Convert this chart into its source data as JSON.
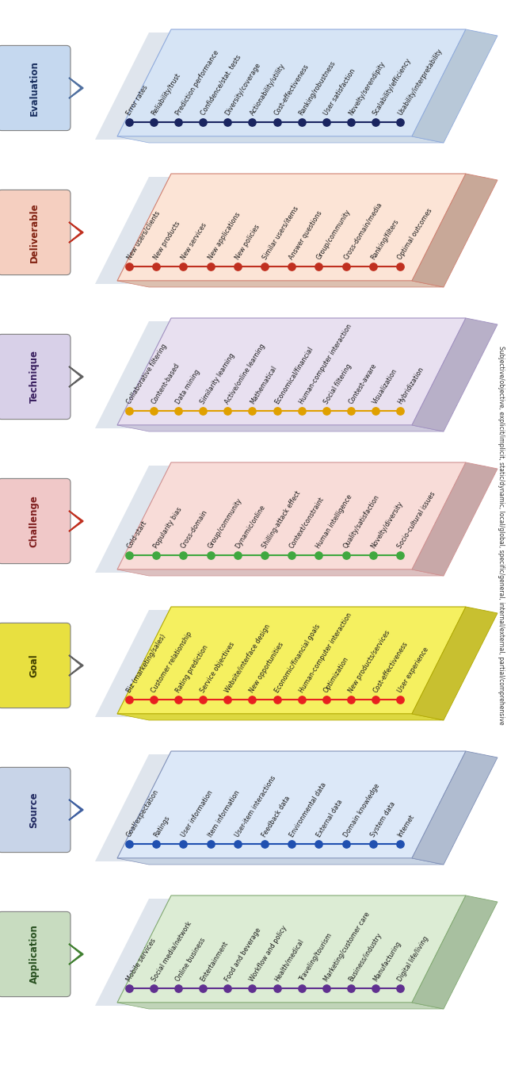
{
  "layers": [
    {
      "label": "Evaluation",
      "label_bg": "#c5d8ef",
      "label_text_color": "#1a3060",
      "panel_bg": "#d6e4f5",
      "panel_edge": "#8faadc",
      "shadow_bg": "#b0c4dc",
      "dot_color": "#1a2560",
      "arrow_stroke": "#5070a0",
      "arrow_fill": "white",
      "right3d_face": "#b8c8d8",
      "right3d_top": "#d0dce8",
      "items": [
        "Error rates",
        "Reliability/trust",
        "Prediction performance",
        "Confidence/stat. tests",
        "Diversity/coverage",
        "Actionability/utility",
        "Cost-effectiveness",
        "Ranking/robustness",
        "User satisfaction",
        "Novelty/serendipity",
        "Scalability/efficiency",
        "Usability/interpretability"
      ]
    },
    {
      "label": "Deliverable",
      "label_bg": "#f5cfc0",
      "label_text_color": "#802010",
      "panel_bg": "#fce4d6",
      "panel_edge": "#d08070",
      "shadow_bg": "#d4b0a0",
      "dot_color": "#c03020",
      "arrow_stroke": "#c03020",
      "arrow_fill": "white",
      "right3d_face": "#c8a898",
      "right3d_top": "#dcc0b0",
      "items": [
        "New users/clients",
        "New products",
        "New services",
        "New applications",
        "New policies",
        "Similar users/items",
        "Answer questions",
        "Group/community",
        "Cross-domain/media",
        "Ranking/filters",
        "Optimal outcomes"
      ]
    },
    {
      "label": "Technique",
      "label_bg": "#d8d0e8",
      "label_text_color": "#3a2060",
      "panel_bg": "#e8e0f0",
      "panel_edge": "#a090c0",
      "shadow_bg": "#b8b0cc",
      "dot_color": "#e0a000",
      "arrow_stroke": "#606060",
      "arrow_fill": "white",
      "right3d_face": "#b8b0c8",
      "right3d_top": "#ccc8dc",
      "items": [
        "Collaborative filtering",
        "Content-based",
        "Data mining",
        "Similarity learning",
        "Active/online learning",
        "Mathematical",
        "Economical/financial",
        "Human-computer interaction",
        "Social filtering",
        "Contest-aware",
        "Visualization",
        "Hybridization"
      ]
    },
    {
      "label": "Challenge",
      "label_bg": "#f0c8c8",
      "label_text_color": "#802020",
      "panel_bg": "#f8dcd8",
      "panel_edge": "#d09090",
      "shadow_bg": "#d0b0b0",
      "dot_color": "#40a840",
      "arrow_stroke": "#c03020",
      "arrow_fill": "white",
      "right3d_face": "#c8a8a8",
      "right3d_top": "#dcc0c0",
      "items": [
        "Cold-start",
        "Popularity bias",
        "Cross-domain",
        "Group/community",
        "Dynamic/online",
        "Shilling-attack effect",
        "Context/constraint",
        "Human intelligence",
        "Quality/satisfaction",
        "Novelty/diversity",
        "Socio-cultural issues"
      ]
    },
    {
      "label": "Goal",
      "label_bg": "#e8e040",
      "label_text_color": "#404000",
      "panel_bg": "#f5f060",
      "panel_edge": "#b0a800",
      "shadow_bg": "#c8c050",
      "dot_color": "#e82020",
      "arrow_stroke": "#606060",
      "arrow_fill": "white",
      "right3d_face": "#c8c030",
      "right3d_top": "#dcd840",
      "items": [
        "Biz (marketing/sales)",
        "Customer relationship",
        "Rating prediction",
        "Service objectives",
        "Website/interface design",
        "New opportunities",
        "Economic/financial goals",
        "Human-computer interaction",
        "Optimization",
        "New products/services",
        "Cost-effectiveness",
        "User experience"
      ]
    },
    {
      "label": "Source",
      "label_bg": "#c8d4e8",
      "label_text_color": "#202860",
      "panel_bg": "#dce8f8",
      "panel_edge": "#8090b8",
      "shadow_bg": "#a8b8cc",
      "dot_color": "#2050b0",
      "arrow_stroke": "#4060a0",
      "arrow_fill": "#d0e0f8",
      "right3d_face": "#b0bcd0",
      "right3d_top": "#c8d4e4",
      "items": [
        "Goal/expectation",
        "Ratings",
        "User information",
        "Item information",
        "User-item interactions",
        "Feedback data",
        "Environmental data",
        "External data",
        "Domain knowledge",
        "System data",
        "Internet"
      ]
    },
    {
      "label": "Application",
      "label_bg": "#c8dcc0",
      "label_text_color": "#285020",
      "panel_bg": "#dcecd4",
      "panel_edge": "#80a870",
      "shadow_bg": "#a8c0a0",
      "dot_color": "#603090",
      "arrow_stroke": "#408030",
      "arrow_fill": "white",
      "right3d_face": "#a8c0a0",
      "right3d_top": "#c0d4b8",
      "items": [
        "Mobile services",
        "Social media/network",
        "Online business",
        "Entertainment",
        "Food and beverage",
        "Workflow and policy",
        "Health/medical",
        "Traveling/tourism",
        "Marketing/customer care",
        "Business/industry",
        "Manufacturing",
        "Digital life/living"
      ]
    }
  ],
  "global_shadow_bg": "#c0ccdc",
  "side_text": "Subjective/objective, explicit/implicit, static/dynamic, local/global, specific/general, internal/external, partial/comprehensive"
}
